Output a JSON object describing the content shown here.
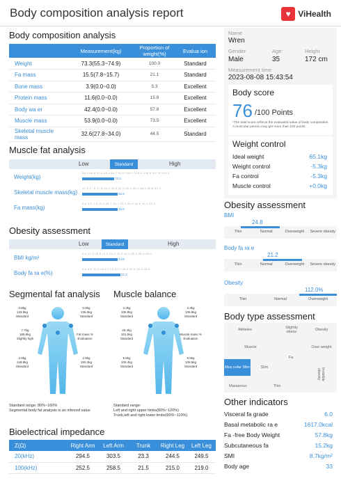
{
  "header": {
    "title": "Body composition analysis report",
    "brand": "ViHealth"
  },
  "body_composition": {
    "title": "Body composition analysis",
    "columns": [
      "",
      "Measurement(kg)",
      "Proportion of weight(%)",
      "Evalua ion"
    ],
    "rows": [
      {
        "name": "Weight",
        "measurement": "73.3(55.3~74.9)",
        "proportion": "100.0",
        "evaluation": "Standard"
      },
      {
        "name": "Fa  mass",
        "measurement": "15.5(7.8~15.7)",
        "proportion": "21.1",
        "evaluation": "Standard"
      },
      {
        "name": "Bone mass",
        "measurement": "3.9(0.0~0.0)",
        "proportion": "5.3",
        "evaluation": "Excellent"
      },
      {
        "name": "Protein mass",
        "measurement": "11.6(0.0~0.0)",
        "proportion": "15.8",
        "evaluation": "Excellent"
      },
      {
        "name": "Body wa er",
        "measurement": "42.4(0.0~0.0)",
        "proportion": "57.8",
        "evaluation": "Excellent"
      },
      {
        "name": "Muscle mass",
        "measurement": "53.9(0.0~0.0)",
        "proportion": "73.5",
        "evaluation": "Excellent"
      },
      {
        "name": "Skeletal muscle mass",
        "measurement": "32.6(27.8~34.0)",
        "proportion": "44.5",
        "evaluation": "Standard"
      }
    ]
  },
  "muscle_fat": {
    "title": "Muscle fat analysis",
    "levels": [
      "Low",
      "Standard",
      "High"
    ],
    "rows": [
      {
        "label": "Weight(kg)",
        "ticks": "35.2  46.5  57.6  68.4  81.7  92.9  104.1  115.4  126.6  137.8  149.0",
        "value": "73.3",
        "fraction": 0.24
      },
      {
        "label": "Skeletal muscle mass(kg)",
        "ticks": "17.9  17.8  27.9  30.9  34.0  37.0  40.0  43.0  46.0  49.0  52.0",
        "value": "32.6",
        "fraction": 0.27
      },
      {
        "label": "Fa  mass(kg)",
        "ticks": "3.4  3.6  7.8  11.4  15.7  20.7  23.1  31.4  35.6  39.2  43.2",
        "value": "15.5",
        "fraction": 0.27
      }
    ]
  },
  "obesity_left": {
    "title": "Obesity assessment",
    "levels": [
      "Low",
      "Standard",
      "High"
    ],
    "rows": [
      {
        "label": "BMI kg/m²",
        "ticks": "0.0   17.3   18.5   21.6   24.0   25.0   30.0   35.0   40.0   45.0",
        "value": "24.8",
        "fraction": 0.27
      },
      {
        "label": "Body fa  ra e(%)",
        "ticks": "0.0   6.0   10.0   15.0   17.0   20.0   25.0   30.0   35.0   40.0",
        "value": "21.2",
        "fraction": 0.29
      }
    ]
  },
  "segmental": {
    "title": "Segmental fat analysis",
    "center_label": "Fat mass % Evaluation",
    "left_arm": [
      "0.8kg",
      "133.5kg",
      "Standard"
    ],
    "right_arm": [
      "0.8kg",
      "135.0kg",
      "Standard"
    ],
    "trunk": [
      "7.7kg",
      "189.8kg",
      "Slightly high"
    ],
    "left_leg": [
      "2.5kg",
      "149.8kg",
      "Standard"
    ],
    "right_leg": [
      "2.5kg",
      "150.3kg",
      "Standard"
    ],
    "note1": "Standard range: 80%~160%",
    "note2": "Segmental body fat analysis is an inferred value"
  },
  "muscle_balance": {
    "title": "Muscle balance",
    "center_label": "Muscle mass % Evaluation",
    "left_arm": [
      "3.3kg",
      "106.8kg",
      "Standard"
    ],
    "right_arm": [
      "3.3kg",
      "106.8kg",
      "Standard"
    ],
    "trunk": [
      "25.4kg",
      "101.5kg",
      "Standard"
    ],
    "left_leg": [
      "9.5kg",
      "108.4kg",
      "Standard"
    ],
    "right_leg": [
      "9.5kg",
      "108.5kg",
      "Standard"
    ],
    "note1": "Standard range:",
    "note2": "Left and right upper limbs(80%~120%)",
    "note3": "Trunk,left and right lower limbs(90%~110%)"
  },
  "bioelectrical": {
    "title": "Bioelectrical impedance",
    "columns": [
      "Z(Ω)",
      "Right Arm",
      "Left Arm",
      "Trunk",
      "Right Leg",
      "Left Leg"
    ],
    "rows": [
      [
        "20(kHz)",
        "294.5",
        "303.5",
        "23.3",
        "244.5",
        "249.5"
      ],
      [
        "100(kHz)",
        "252.5",
        "258.5",
        "21.5",
        "215.0",
        "219.0"
      ]
    ]
  },
  "profile": {
    "name_label": "Name",
    "name": "Wren",
    "gender_label": "Gender",
    "gender": "Male",
    "age_label": "Age:",
    "age": "35",
    "height_label": "Height",
    "height": "172 cm",
    "time_label": "Measurement time",
    "time": "2023-08-08 15:43:54"
  },
  "body_score": {
    "title": "Body score",
    "score": "76",
    "suffix": "/100 Points",
    "note": "*The total score reflects the evaluated value of body composition. A muscular person may get more than 100 points."
  },
  "weight_control": {
    "title": "Weight control",
    "rows": [
      {
        "k": "Ideal weight",
        "v": "65.1kg"
      },
      {
        "k": "Weight control",
        "v": "-5.3kg"
      },
      {
        "k": "Fa  control",
        "v": "-5.3kg"
      },
      {
        "k": "Muscle control",
        "v": "+0.0kg"
      }
    ]
  },
  "obesity_right": {
    "title": "Obesity assessment",
    "bmi": {
      "label": "BMI",
      "value": "24.8",
      "cats": [
        "Thin",
        "Normal",
        "Overweight",
        "Severe obesity"
      ]
    },
    "fat": {
      "label": "Body fa  ra e",
      "value": "21.2",
      "cats": [
        "Thin",
        "Normal",
        "Overweight",
        "Severe obesity"
      ]
    },
    "obesity": {
      "label": "Obesity",
      "value": "112.0%",
      "cats": [
        "Thin",
        "Normal",
        "Overweight"
      ]
    }
  },
  "body_type": {
    "title": "Body type assessment",
    "cells": {
      "athletes": "Athletes",
      "slightly_obese": "Slightly obese",
      "obesity": "Obesity",
      "muscle": "Muscle",
      "over_weight": "Over weight",
      "fat": "Fa",
      "muscular_slim": "Mus cular Slim",
      "slim": "Slim",
      "invisible_obesity": "Invisible obesity",
      "marasmus": "Marasmus",
      "thin": "Thin"
    }
  },
  "other": {
    "title": "Other indicators",
    "rows": [
      {
        "k": "Visceral fa  grade",
        "v": "6.0"
      },
      {
        "k": "Basal metabolic ra e",
        "v": "1617.0kcal"
      },
      {
        "k": "Fa -free Body Weight",
        "v": "57.8kg"
      },
      {
        "k": "Subcutaneous fa",
        "v": "15.2kg"
      },
      {
        "k": "SMI",
        "v": "8.7kg/m²"
      },
      {
        "k": "Body age",
        "v": "33"
      }
    ]
  },
  "colors": {
    "accent": "#3a8fdb",
    "figure": "#6ec6ef",
    "brand": "#e9343a"
  }
}
